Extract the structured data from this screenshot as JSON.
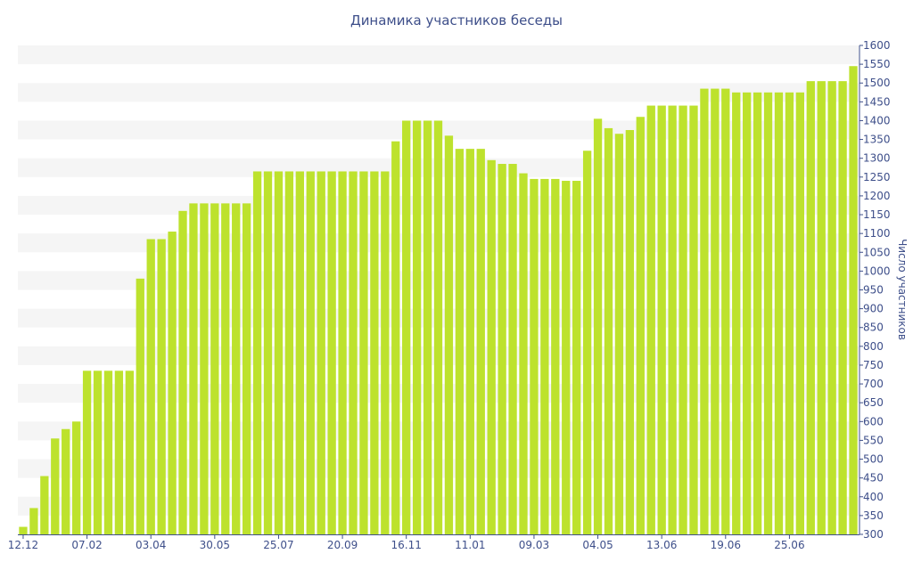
{
  "chart_data": {
    "type": "bar",
    "title": "Динамика участников беседы",
    "xlabel": "",
    "ylabel": "Число участников",
    "ylim": [
      300,
      1600
    ],
    "yticks": [
      300,
      350,
      400,
      450,
      500,
      550,
      600,
      650,
      700,
      750,
      800,
      850,
      900,
      950,
      1000,
      1050,
      1100,
      1150,
      1200,
      1250,
      1300,
      1350,
      1400,
      1450,
      1500,
      1550,
      1600
    ],
    "xtick_labels": [
      {
        "index": 0,
        "label": "12.12"
      },
      {
        "index": 6,
        "label": "07.02"
      },
      {
        "index": 12,
        "label": "03.04"
      },
      {
        "index": 18,
        "label": "30.05"
      },
      {
        "index": 24,
        "label": "25.07"
      },
      {
        "index": 30,
        "label": "20.09"
      },
      {
        "index": 36,
        "label": "16.11"
      },
      {
        "index": 42,
        "label": "11.01"
      },
      {
        "index": 48,
        "label": "09.03"
      },
      {
        "index": 54,
        "label": "04.05"
      },
      {
        "index": 60,
        "label": "13.06"
      },
      {
        "index": 66,
        "label": "19.06"
      },
      {
        "index": 72,
        "label": "25.06"
      }
    ],
    "values": [
      320,
      370,
      455,
      555,
      580,
      600,
      735,
      735,
      735,
      735,
      735,
      980,
      1085,
      1085,
      1105,
      1160,
      1180,
      1180,
      1180,
      1180,
      1180,
      1180,
      1265,
      1265,
      1265,
      1265,
      1265,
      1265,
      1265,
      1265,
      1265,
      1265,
      1265,
      1265,
      1265,
      1345,
      1400,
      1400,
      1400,
      1400,
      1360,
      1325,
      1325,
      1325,
      1295,
      1285,
      1285,
      1260,
      1245,
      1245,
      1245,
      1240,
      1240,
      1320,
      1405,
      1380,
      1365,
      1375,
      1410,
      1440,
      1440,
      1440,
      1440,
      1440,
      1485,
      1485,
      1485,
      1475,
      1475,
      1475,
      1475,
      1475,
      1475,
      1475,
      1505,
      1505,
      1505,
      1505,
      1545
    ],
    "colors": {
      "bar": "#bde22d",
      "text": "#3e4f8a",
      "band": "#f5f5f5",
      "axis": "#3e4f8a"
    },
    "grid": true,
    "legend": "none"
  }
}
